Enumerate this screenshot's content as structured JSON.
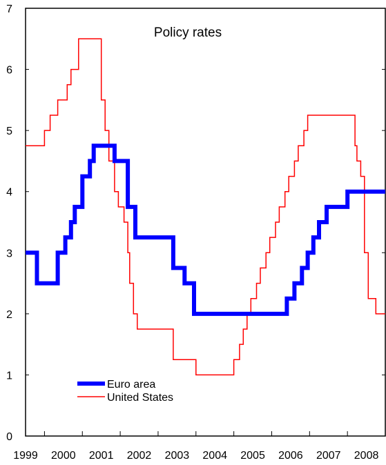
{
  "chart_data": {
    "type": "line",
    "step": true,
    "title": "Policy rates",
    "xlabel": "",
    "ylabel": "",
    "xlim": [
      1999.0,
      2008.5
    ],
    "ylim": [
      0,
      7
    ],
    "y_ticks": [
      0,
      1,
      2,
      3,
      4,
      5,
      6,
      7
    ],
    "x_ticks": [
      "1999",
      "2000",
      "2001",
      "2002",
      "2003",
      "2004",
      "2005",
      "2006",
      "2007",
      "2008"
    ],
    "grid": false,
    "legend_position": "bottom-left",
    "series": [
      {
        "name": "Euro area",
        "color": "#0000ff",
        "style": "thick",
        "x": [
          1999.0,
          1999.3,
          1999.85,
          2000.05,
          2000.2,
          2000.3,
          2000.45,
          2000.5,
          2000.7,
          2000.8,
          2001.35,
          2001.7,
          2001.9,
          2002.9,
          2003.2,
          2003.45,
          2005.9,
          2006.1,
          2006.3,
          2006.45,
          2006.6,
          2006.75,
          2006.95,
          2007.2,
          2007.5,
          2008.5
        ],
        "y": [
          3.0,
          2.5,
          3.0,
          3.25,
          3.5,
          3.75,
          3.75,
          4.25,
          4.5,
          4.75,
          4.5,
          3.75,
          3.25,
          2.75,
          2.5,
          2.0,
          2.25,
          2.5,
          2.75,
          3.0,
          3.25,
          3.5,
          3.75,
          3.75,
          4.0,
          4.0
        ]
      },
      {
        "name": "United States",
        "color": "#ff0000",
        "style": "thin",
        "x": [
          1999.0,
          1999.5,
          1999.65,
          1999.85,
          2000.1,
          2000.2,
          2000.4,
          2001.0,
          2001.1,
          2001.2,
          2001.35,
          2001.45,
          2001.6,
          2001.7,
          2001.75,
          2001.85,
          2001.95,
          2002.9,
          2003.5,
          2004.5,
          2004.65,
          2004.75,
          2004.85,
          2004.95,
          2005.1,
          2005.2,
          2005.35,
          2005.45,
          2005.6,
          2005.7,
          2005.85,
          2005.95,
          2006.1,
          2006.2,
          2006.35,
          2006.45,
          2007.7,
          2007.75,
          2007.85,
          2007.95,
          2008.05,
          2008.25,
          2008.35
        ],
        "y": [
          4.75,
          5.0,
          5.25,
          5.5,
          5.75,
          6.0,
          6.5,
          5.5,
          5.0,
          4.5,
          4.0,
          3.75,
          3.5,
          3.0,
          2.5,
          2.0,
          1.75,
          1.25,
          1.0,
          1.25,
          1.5,
          1.75,
          2.0,
          2.25,
          2.5,
          2.75,
          3.0,
          3.25,
          3.5,
          3.75,
          4.0,
          4.25,
          4.5,
          4.75,
          5.0,
          5.25,
          4.75,
          4.5,
          4.25,
          3.0,
          2.25,
          2.0,
          2.0
        ]
      }
    ]
  }
}
